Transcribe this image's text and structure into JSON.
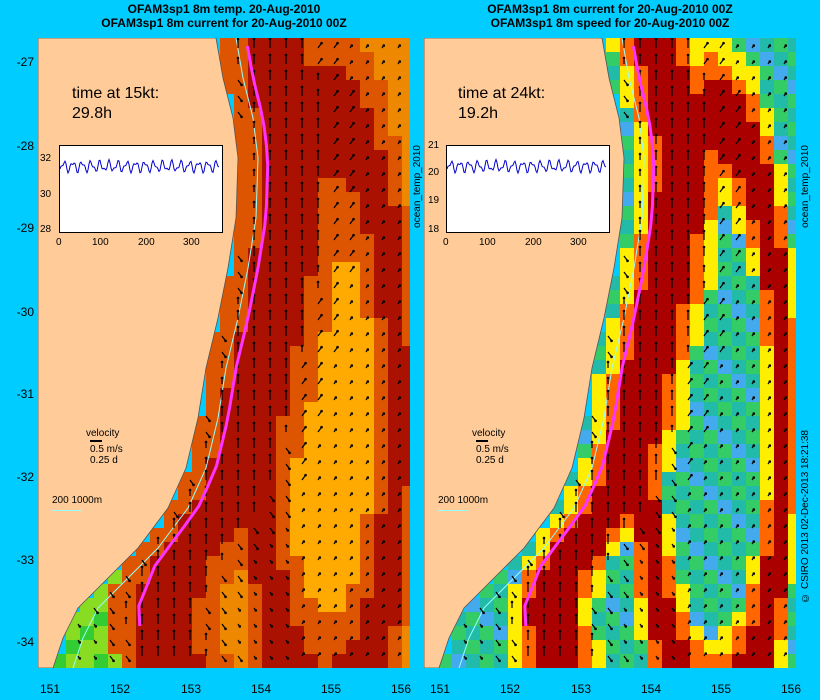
{
  "left": {
    "title1": "OFAM3sp1 8m temp. 20-Aug-2010",
    "title2": "OFAM3sp1 8m current for 20-Aug-2010 00Z",
    "time_label": "time at 15kt:",
    "time_value": "29.8h",
    "inset_yticks": [
      "32",
      "30",
      "28"
    ],
    "inset_xticks": [
      "0",
      "100",
      "200",
      "300"
    ],
    "side_label": "ocean_temp_2010"
  },
  "right": {
    "title1": "OFAM3sp1 8m current for 20-Aug-2010 00Z",
    "title2": "OFAM3sp1 8m speed for 20-Aug-2010 00Z",
    "time_label": "time at 24kt:",
    "time_value": "19.2h",
    "inset_yticks": [
      "21",
      "20",
      "19",
      "18"
    ],
    "inset_xticks": [
      "0",
      "100",
      "200",
      "300"
    ],
    "side_label": "ocean_temp_2010"
  },
  "velocity_key": {
    "label": "velocity",
    "speed": "0.5 m/s",
    "time": "0.25 d"
  },
  "depth_key": "200  1000m",
  "yticks": [
    "-27",
    "-28",
    "-29",
    "-30",
    "-31",
    "-32",
    "-33",
    "-34"
  ],
  "xticks": [
    "151",
    "152",
    "153",
    "154",
    "155",
    "156"
  ],
  "credit": "© CSIRO 2013   02-Dec-2013 18:21:38",
  "colors": {
    "background": "#00ccff",
    "land": "#ffcc99",
    "route": "#ff33ff",
    "depth_contour": "#99ffff"
  }
}
